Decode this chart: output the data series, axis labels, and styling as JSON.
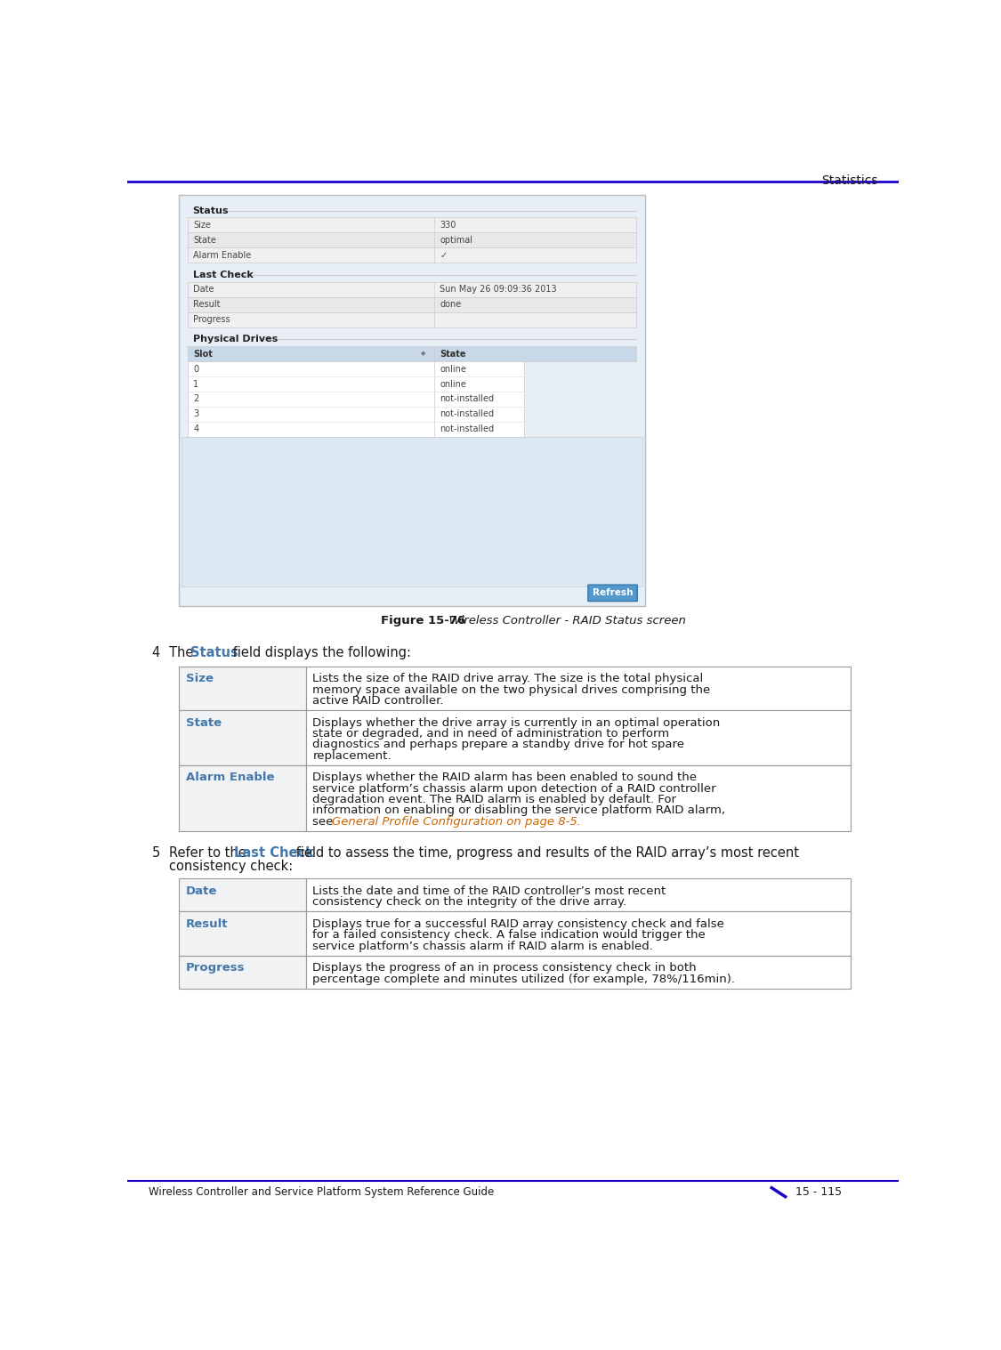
{
  "header_text": "Statistics",
  "header_line_color": "#1a00cc",
  "footer_text_left": "Wireless Controller and Service Platform System Reference Guide",
  "footer_text_right": "15 - 115",
  "footer_line_color": "#1a00cc",
  "figure_caption_bold": "Figure 15-76",
  "figure_caption_italic": "  Wireless Controller - RAID Status screen",
  "text_color": "#1a1a1a",
  "label_color": "#4477aa",
  "link_color": "#cc6600",
  "table_border": "#999999",
  "screenshot": {
    "outer_bg": "#e8eef4",
    "inner_bg": "#f0f4f8",
    "panel_bg": "#ffffff",
    "section_label_color": "#333333",
    "row_bg_alt": "#f5f5f5",
    "row_bg_even": "#ffffff",
    "header_bg": "#c8d8e8",
    "border_color": "#cccccc",
    "text_color": "#333333",
    "refresh_bg": "#4488bb",
    "refresh_text": "#ffffff"
  },
  "table1_rows": [
    {
      "label": "Size",
      "lines": [
        "Lists the size of the RAID drive array. The size is the total physical",
        "memory space available on the two physical drives comprising the",
        "active RAID controller."
      ]
    },
    {
      "label": "State",
      "lines": [
        "Displays whether the drive array is currently in an optimal operation",
        "state or degraded, and in need of administration to perform",
        "diagnostics and perhaps prepare a standby drive for hot spare",
        "replacement."
      ]
    },
    {
      "label": "Alarm Enable",
      "lines": [
        "Displays whether the RAID alarm has been enabled to sound the",
        "service platform’s chassis alarm upon detection of a RAID controller",
        "degradation event. The RAID alarm is enabled by default. For",
        "information on enabling or disabling the service platform RAID alarm,",
        "see General Profile Configuration on page 8-5."
      ]
    }
  ],
  "table2_rows": [
    {
      "label": "Date",
      "lines": [
        "Lists the date and time of the RAID controller’s most recent",
        "consistency check on the integrity of the drive array."
      ]
    },
    {
      "label": "Result",
      "lines": [
        "Displays true for a successful RAID array consistency check and false",
        "for a failed consistency check. A false indication would trigger the",
        "service platform’s chassis alarm if RAID alarm is enabled."
      ]
    },
    {
      "label": "Progress",
      "lines": [
        "Displays the progress of an in process consistency check in both",
        "percentage complete and minutes utilized (for example, 78%/116min)."
      ]
    }
  ]
}
